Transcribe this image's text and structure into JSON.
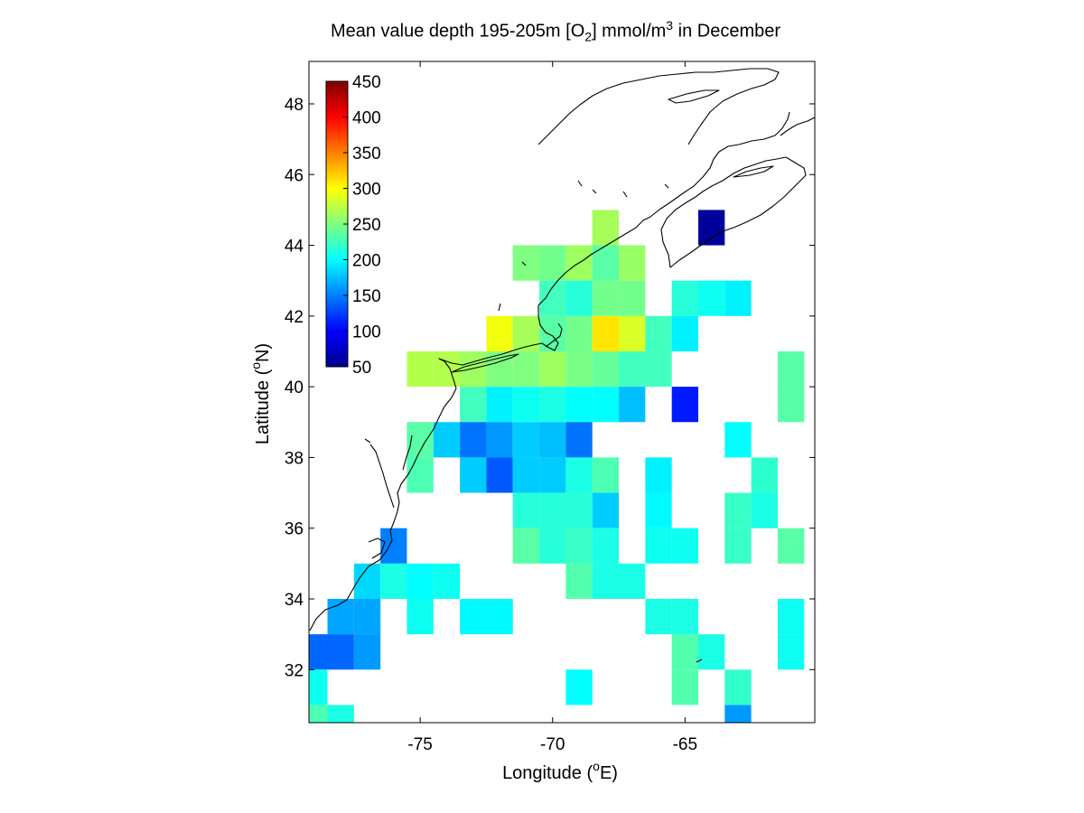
{
  "title": {
    "main": "Mean value depth 195-205m [O",
    "sub": "2",
    "unit": "] mmol/m",
    "sup": "3",
    "suffix": " in December"
  },
  "axes": {
    "xlabel_prefix": "Longitude (",
    "xlabel_deg": "o",
    "xlabel_suffix": "E)",
    "ylabel_prefix": "Latitude (",
    "ylabel_deg": "o",
    "ylabel_suffix": "N)"
  },
  "chart_data": {
    "type": "heatmap",
    "xlim": [
      -79.2,
      -60.1
    ],
    "ylim": [
      30.5,
      49.2
    ],
    "xticks": [
      -75,
      -70,
      -65
    ],
    "xtick_labels": [
      "-75",
      "-70",
      "-65"
    ],
    "yticks": [
      32,
      34,
      36,
      38,
      40,
      42,
      44,
      46,
      48
    ],
    "ytick_labels": [
      "32",
      "34",
      "36",
      "38",
      "40",
      "42",
      "44",
      "46",
      "48"
    ],
    "colorbar": {
      "min": 50,
      "max": 450,
      "ticks": [
        50,
        100,
        150,
        200,
        250,
        300,
        350,
        400,
        450
      ],
      "tick_labels": [
        "50",
        "100",
        "150",
        "200",
        "250",
        "300",
        "350",
        "400",
        "450"
      ],
      "colormap": "jet"
    },
    "cell_size_deg": 1,
    "cells": [
      {
        "lon": -68,
        "lat": 44.5,
        "value": 265
      },
      {
        "lon": -64,
        "lat": 44.5,
        "value": 55
      },
      {
        "lon": -71,
        "lat": 43.5,
        "value": 250
      },
      {
        "lon": -70,
        "lat": 43.5,
        "value": 245
      },
      {
        "lon": -69,
        "lat": 43.5,
        "value": 262
      },
      {
        "lon": -68,
        "lat": 43.5,
        "value": 235
      },
      {
        "lon": -67,
        "lat": 43.5,
        "value": 260
      },
      {
        "lon": -70,
        "lat": 42.5,
        "value": 225
      },
      {
        "lon": -69,
        "lat": 42.5,
        "value": 215
      },
      {
        "lon": -68,
        "lat": 42.5,
        "value": 245
      },
      {
        "lon": -67,
        "lat": 42.5,
        "value": 245
      },
      {
        "lon": -65,
        "lat": 42.5,
        "value": 215
      },
      {
        "lon": -64,
        "lat": 42.5,
        "value": 205
      },
      {
        "lon": -63,
        "lat": 42.5,
        "value": 195
      },
      {
        "lon": -72,
        "lat": 41.5,
        "value": 295
      },
      {
        "lon": -71,
        "lat": 41.5,
        "value": 265
      },
      {
        "lon": -70,
        "lat": 41.5,
        "value": 235
      },
      {
        "lon": -69,
        "lat": 41.5,
        "value": 245
      },
      {
        "lon": -68,
        "lat": 41.5,
        "value": 310
      },
      {
        "lon": -67,
        "lat": 41.5,
        "value": 285
      },
      {
        "lon": -66,
        "lat": 41.5,
        "value": 225
      },
      {
        "lon": -65,
        "lat": 41.5,
        "value": 195
      },
      {
        "lon": -75,
        "lat": 40.5,
        "value": 270
      },
      {
        "lon": -74,
        "lat": 40.5,
        "value": 270
      },
      {
        "lon": -73,
        "lat": 40.5,
        "value": 262
      },
      {
        "lon": -72,
        "lat": 40.5,
        "value": 250
      },
      {
        "lon": -71,
        "lat": 40.5,
        "value": 250
      },
      {
        "lon": -70,
        "lat": 40.5,
        "value": 262
      },
      {
        "lon": -69,
        "lat": 40.5,
        "value": 248
      },
      {
        "lon": -68,
        "lat": 40.5,
        "value": 240
      },
      {
        "lon": -67,
        "lat": 40.5,
        "value": 225
      },
      {
        "lon": -66,
        "lat": 40.5,
        "value": 225
      },
      {
        "lon": -61,
        "lat": 40.5,
        "value": 235
      },
      {
        "lon": -73,
        "lat": 39.5,
        "value": 225
      },
      {
        "lon": -72,
        "lat": 39.5,
        "value": 195
      },
      {
        "lon": -71,
        "lat": 39.5,
        "value": 205
      },
      {
        "lon": -70,
        "lat": 39.5,
        "value": 210
      },
      {
        "lon": -69,
        "lat": 39.5,
        "value": 200
      },
      {
        "lon": -68,
        "lat": 39.5,
        "value": 200
      },
      {
        "lon": -67,
        "lat": 39.5,
        "value": 175
      },
      {
        "lon": -65,
        "lat": 39.5,
        "value": 110
      },
      {
        "lon": -61,
        "lat": 39.5,
        "value": 235
      },
      {
        "lon": -75,
        "lat": 38.5,
        "value": 235
      },
      {
        "lon": -74,
        "lat": 38.5,
        "value": 180
      },
      {
        "lon": -73,
        "lat": 38.5,
        "value": 145
      },
      {
        "lon": -72,
        "lat": 38.5,
        "value": 160
      },
      {
        "lon": -71,
        "lat": 38.5,
        "value": 180
      },
      {
        "lon": -70,
        "lat": 38.5,
        "value": 175
      },
      {
        "lon": -69,
        "lat": 38.5,
        "value": 145
      },
      {
        "lon": -63,
        "lat": 38.5,
        "value": 200
      },
      {
        "lon": -75,
        "lat": 37.5,
        "value": 230
      },
      {
        "lon": -73,
        "lat": 37.5,
        "value": 180
      },
      {
        "lon": -72,
        "lat": 37.5,
        "value": 135
      },
      {
        "lon": -71,
        "lat": 37.5,
        "value": 180
      },
      {
        "lon": -70,
        "lat": 37.5,
        "value": 180
      },
      {
        "lon": -69,
        "lat": 37.5,
        "value": 210
      },
      {
        "lon": -68,
        "lat": 37.5,
        "value": 230
      },
      {
        "lon": -66,
        "lat": 37.5,
        "value": 195
      },
      {
        "lon": -62,
        "lat": 37.5,
        "value": 218
      },
      {
        "lon": -71,
        "lat": 36.5,
        "value": 215
      },
      {
        "lon": -70,
        "lat": 36.5,
        "value": 215
      },
      {
        "lon": -69,
        "lat": 36.5,
        "value": 215
      },
      {
        "lon": -68,
        "lat": 36.5,
        "value": 180
      },
      {
        "lon": -66,
        "lat": 36.5,
        "value": 198
      },
      {
        "lon": -63,
        "lat": 36.5,
        "value": 222
      },
      {
        "lon": -62,
        "lat": 36.5,
        "value": 210
      },
      {
        "lon": -76,
        "lat": 35.5,
        "value": 150
      },
      {
        "lon": -71,
        "lat": 35.5,
        "value": 235
      },
      {
        "lon": -70,
        "lat": 35.5,
        "value": 215
      },
      {
        "lon": -69,
        "lat": 35.5,
        "value": 222
      },
      {
        "lon": -68,
        "lat": 35.5,
        "value": 210
      },
      {
        "lon": -66,
        "lat": 35.5,
        "value": 205
      },
      {
        "lon": -65,
        "lat": 35.5,
        "value": 205
      },
      {
        "lon": -63,
        "lat": 35.5,
        "value": 222
      },
      {
        "lon": -61,
        "lat": 35.5,
        "value": 235
      },
      {
        "lon": -77,
        "lat": 34.5,
        "value": 185
      },
      {
        "lon": -76,
        "lat": 34.5,
        "value": 210
      },
      {
        "lon": -75,
        "lat": 34.5,
        "value": 200
      },
      {
        "lon": -74,
        "lat": 34.5,
        "value": 205
      },
      {
        "lon": -69,
        "lat": 34.5,
        "value": 232
      },
      {
        "lon": -68,
        "lat": 34.5,
        "value": 210
      },
      {
        "lon": -67,
        "lat": 34.5,
        "value": 210
      },
      {
        "lon": -78,
        "lat": 33.5,
        "value": 165
      },
      {
        "lon": -77,
        "lat": 33.5,
        "value": 165
      },
      {
        "lon": -75,
        "lat": 33.5,
        "value": 205
      },
      {
        "lon": -73,
        "lat": 33.5,
        "value": 198
      },
      {
        "lon": -72,
        "lat": 33.5,
        "value": 198
      },
      {
        "lon": -66,
        "lat": 33.5,
        "value": 210
      },
      {
        "lon": -65,
        "lat": 33.5,
        "value": 210
      },
      {
        "lon": -61,
        "lat": 33.5,
        "value": 205
      },
      {
        "lon": -80,
        "lat": 32.5,
        "value": 150
      },
      {
        "lon": -79,
        "lat": 32.5,
        "value": 140
      },
      {
        "lon": -78,
        "lat": 32.5,
        "value": 140
      },
      {
        "lon": -77,
        "lat": 32.5,
        "value": 160
      },
      {
        "lon": -65,
        "lat": 32.5,
        "value": 232
      },
      {
        "lon": -64,
        "lat": 32.5,
        "value": 210
      },
      {
        "lon": -61,
        "lat": 32.5,
        "value": 205
      },
      {
        "lon": -79,
        "lat": 31.5,
        "value": 205
      },
      {
        "lon": -69,
        "lat": 31.5,
        "value": 200
      },
      {
        "lon": -65,
        "lat": 31.5,
        "value": 232
      },
      {
        "lon": -63,
        "lat": 31.5,
        "value": 220
      },
      {
        "lon": -79,
        "lat": 30.5,
        "value": 230
      },
      {
        "lon": -78,
        "lat": 30.5,
        "value": 210
      },
      {
        "lon": -63,
        "lat": 30.5,
        "value": 160
      }
    ]
  }
}
